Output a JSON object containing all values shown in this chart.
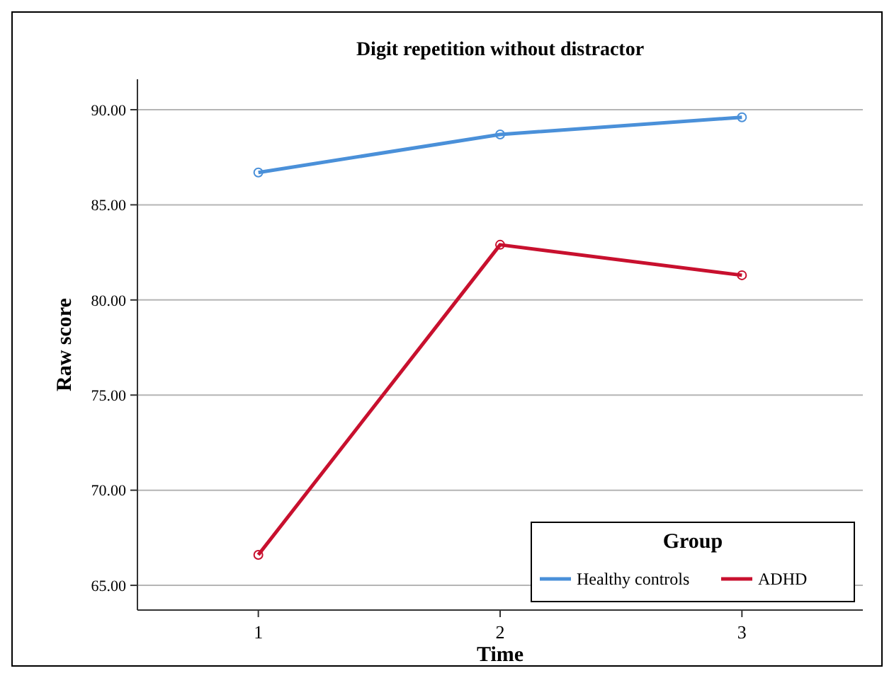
{
  "chart_data": {
    "type": "line",
    "title": "Digit repetition without distractor",
    "xlabel": "Time",
    "ylabel": "Raw score",
    "legend_title": "Group",
    "categories": [
      "1",
      "2",
      "3"
    ],
    "series": [
      {
        "name": "Healthy controls",
        "color": "#4a90d9",
        "values": [
          86.7,
          88.7,
          89.6
        ]
      },
      {
        "name": "ADHD",
        "color": "#c8102e",
        "values": [
          66.6,
          82.9,
          81.3
        ]
      }
    ],
    "ylim": [
      63.7,
      91.6
    ],
    "yticks": [
      {
        "value": 65,
        "label": "65.00"
      },
      {
        "value": 70,
        "label": "70.00"
      },
      {
        "value": 75,
        "label": "75.00"
      },
      {
        "value": 80,
        "label": "80.00"
      },
      {
        "value": 85,
        "label": "85.00"
      },
      {
        "value": 90,
        "label": "90.00"
      }
    ],
    "grid": "y",
    "legend": "bottom right",
    "marker": "circle",
    "line_style": "solid"
  }
}
